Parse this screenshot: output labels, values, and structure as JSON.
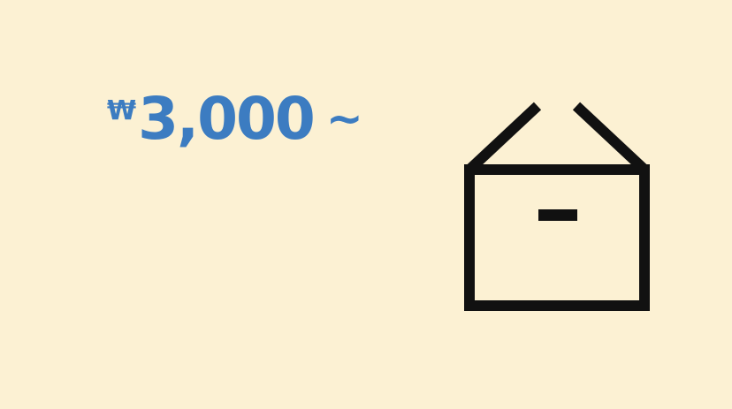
{
  "price": {
    "currency_symbol": "₩",
    "amount": "3,000",
    "suffix": "~"
  },
  "icons": {
    "box": "box-icon"
  },
  "colors": {
    "background": "#FCF1D3",
    "price_text": "#3C7CC1",
    "icon_stroke": "#111111"
  }
}
